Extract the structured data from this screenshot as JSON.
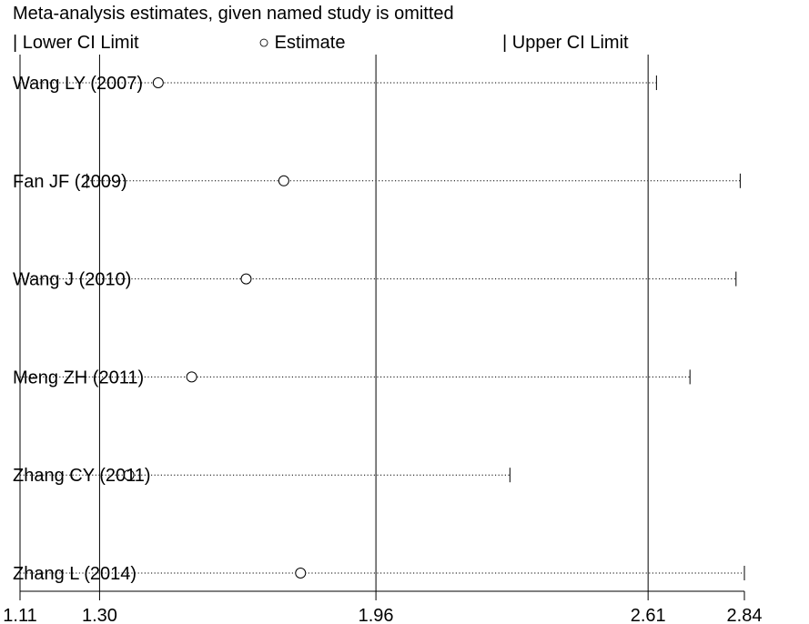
{
  "chart_data": {
    "type": "forest",
    "title": "Meta-analysis estimates, given named study is omitted",
    "legend": {
      "lower": "Lower CI Limit",
      "estimate": "Estimate",
      "upper": "Upper CI Limit"
    },
    "x_ticks": [
      "1.11",
      "1.30",
      "1.96",
      "2.61",
      "2.84"
    ],
    "xlim": [
      1.11,
      2.84
    ],
    "reference_lines": [
      1.3,
      1.96,
      2.61
    ],
    "studies": [
      {
        "label": "Wang LY (2007)",
        "lower": 1.11,
        "estimate": 1.44,
        "upper": 2.63
      },
      {
        "label": "Fan JF (2009)",
        "lower": 1.27,
        "estimate": 1.74,
        "upper": 2.83
      },
      {
        "label": "Wang J (2010)",
        "lower": 1.11,
        "estimate": 1.65,
        "upper": 2.82
      },
      {
        "label": "Meng ZH (2011)",
        "lower": 1.11,
        "estimate": 1.52,
        "upper": 2.71
      },
      {
        "label": "Zhang CY (2011)",
        "lower": 1.11,
        "estimate": 1.37,
        "upper": 2.28
      },
      {
        "label": "Zhang L (2014)",
        "lower": 1.11,
        "estimate": 1.78,
        "upper": 2.84
      }
    ]
  }
}
